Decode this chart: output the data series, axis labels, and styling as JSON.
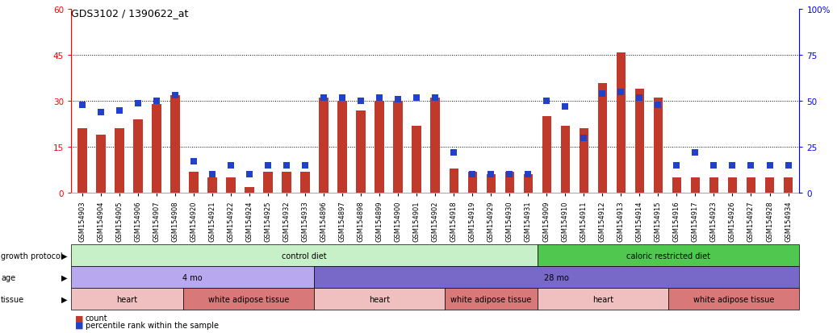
{
  "title": "GDS3102 / 1390622_at",
  "samples": [
    "GSM154903",
    "GSM154904",
    "GSM154905",
    "GSM154906",
    "GSM154907",
    "GSM154908",
    "GSM154920",
    "GSM154921",
    "GSM154922",
    "GSM154924",
    "GSM154925",
    "GSM154932",
    "GSM154933",
    "GSM154896",
    "GSM154897",
    "GSM154898",
    "GSM154899",
    "GSM154900",
    "GSM154901",
    "GSM154902",
    "GSM154918",
    "GSM154919",
    "GSM154929",
    "GSM154930",
    "GSM154931",
    "GSM154909",
    "GSM154910",
    "GSM154911",
    "GSM154912",
    "GSM154913",
    "GSM154914",
    "GSM154915",
    "GSM154916",
    "GSM154917",
    "GSM154923",
    "GSM154926",
    "GSM154927",
    "GSM154928",
    "GSM154934"
  ],
  "count_values": [
    21,
    19,
    21,
    24,
    29,
    32,
    7,
    5,
    5,
    2,
    7,
    7,
    7,
    31,
    30,
    27,
    30,
    30,
    22,
    31,
    8,
    7,
    6,
    7,
    6,
    25,
    22,
    21,
    36,
    46,
    34,
    31,
    5,
    5,
    5,
    5,
    5,
    5,
    5
  ],
  "percentile_values": [
    48,
    44,
    45,
    49,
    50,
    53,
    17,
    10,
    15,
    10,
    15,
    15,
    15,
    52,
    52,
    50,
    52,
    51,
    52,
    52,
    22,
    10,
    10,
    10,
    10,
    50,
    47,
    30,
    54,
    55,
    52,
    48,
    15,
    22,
    15,
    15,
    15,
    15,
    15
  ],
  "ylim_left": [
    0,
    60
  ],
  "ylim_right": [
    0,
    100
  ],
  "yticks_left": [
    0,
    15,
    30,
    45,
    60
  ],
  "yticks_right": [
    0,
    25,
    50,
    75,
    100
  ],
  "bar_color": "#c0392b",
  "dot_color": "#2142c8",
  "grid_lines": [
    15,
    30,
    45
  ],
  "growth_protocol_groups": [
    {
      "label": "control diet",
      "start": 0,
      "end": 25,
      "color": "#c8f0c8"
    },
    {
      "label": "caloric restricted diet",
      "start": 25,
      "end": 39,
      "color": "#50c850"
    }
  ],
  "age_groups": [
    {
      "label": "4 mo",
      "start": 0,
      "end": 13,
      "color": "#b8a8f0"
    },
    {
      "label": "28 mo",
      "start": 13,
      "end": 39,
      "color": "#7868c8"
    }
  ],
  "tissue_groups": [
    {
      "label": "heart",
      "start": 0,
      "end": 6,
      "color": "#f0c0c0"
    },
    {
      "label": "white adipose tissue",
      "start": 6,
      "end": 13,
      "color": "#d87878"
    },
    {
      "label": "heart",
      "start": 13,
      "end": 20,
      "color": "#f0c0c0"
    },
    {
      "label": "white adipose tissue",
      "start": 20,
      "end": 25,
      "color": "#d87878"
    },
    {
      "label": "heart",
      "start": 25,
      "end": 32,
      "color": "#f0c0c0"
    },
    {
      "label": "white adipose tissue",
      "start": 32,
      "end": 39,
      "color": "#d87878"
    }
  ],
  "row_labels": [
    "growth protocol",
    "age",
    "tissue"
  ],
  "background_color": "#ffffff"
}
